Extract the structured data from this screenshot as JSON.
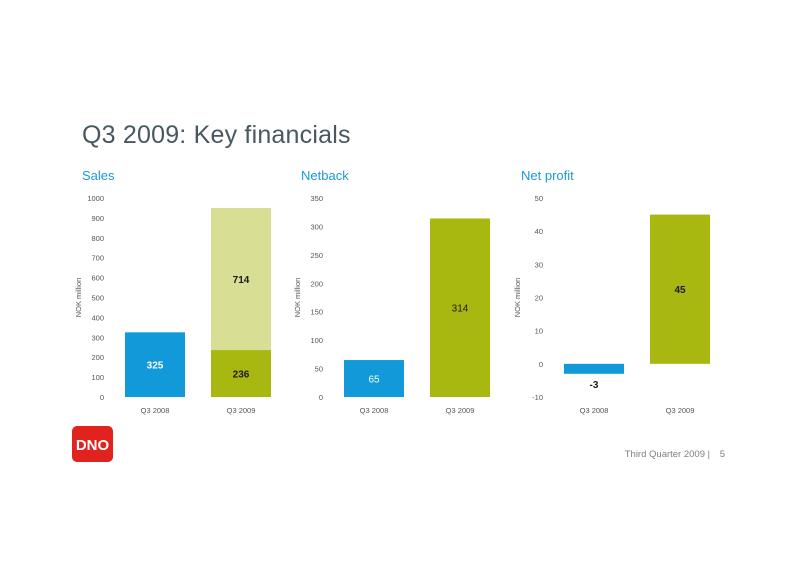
{
  "page": {
    "title": "Q3 2009: Key financials",
    "footer_text": "Third Quarter 2009",
    "footer_separator": "|",
    "page_number": "5"
  },
  "logo": {
    "text": "DNO",
    "color": "#e2221f"
  },
  "colors": {
    "q3_2008": "#1199d9",
    "q3_2009": "#a9b811",
    "q3_2009_light": "#d9de95",
    "chart_title": "#1a9bd4",
    "axis_text": "#555555"
  },
  "chart_data": [
    {
      "type": "bar",
      "stacked": true,
      "title": "Sales",
      "ylabel": "NOK million",
      "ylim": [
        0,
        1000
      ],
      "yticks": [
        0,
        100,
        200,
        300,
        400,
        500,
        600,
        700,
        800,
        900,
        1000
      ],
      "categories": [
        "Q3 2008",
        "Q3 2009"
      ],
      "series": [
        {
          "values": [
            325,
            236
          ],
          "labels": [
            "325",
            "236"
          ],
          "colors": [
            "#1199d9",
            "#a9b811"
          ]
        },
        {
          "values": [
            0,
            714
          ],
          "labels": [
            "",
            "714"
          ],
          "colors": [
            "#1199d9",
            "#d9de95"
          ]
        }
      ]
    },
    {
      "type": "bar",
      "title": "Netback",
      "ylabel": "NOK million",
      "ylim": [
        0,
        350
      ],
      "yticks": [
        0,
        50,
        100,
        150,
        200,
        250,
        300,
        350
      ],
      "categories": [
        "Q3 2008",
        "Q3 2009"
      ],
      "series": [
        {
          "values": [
            65,
            314
          ],
          "labels": [
            "65",
            "314"
          ],
          "colors": [
            "#1199d9",
            "#a9b811"
          ]
        }
      ]
    },
    {
      "type": "bar",
      "title": "Net profit",
      "ylabel": "NOK million",
      "ylim": [
        -10,
        50
      ],
      "yticks": [
        -10,
        0,
        10,
        20,
        30,
        40,
        50
      ],
      "categories": [
        "Q3 2008",
        "Q3 2009"
      ],
      "series": [
        {
          "values": [
            -3,
            45
          ],
          "labels": [
            "-3",
            "45"
          ],
          "colors": [
            "#1199d9",
            "#a9b811"
          ]
        }
      ]
    }
  ]
}
